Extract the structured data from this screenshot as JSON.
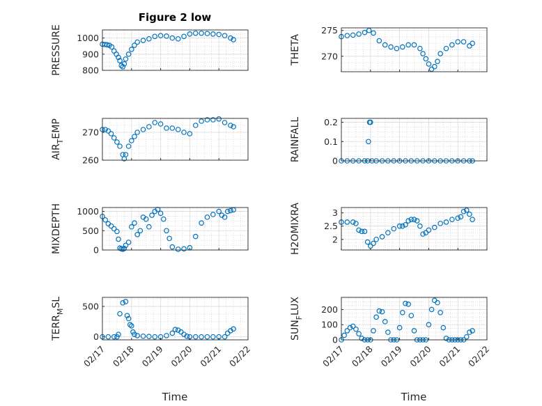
{
  "chart_data": [
    {
      "type": "scatter",
      "title": "Figure 2 low",
      "ylabel": "PRESSURE",
      "ylim": [
        800,
        1050
      ],
      "yticks": [
        800,
        900,
        1000
      ],
      "xlim": [
        0,
        5
      ],
      "grid": true,
      "marker_color": "#0072BD",
      "x": [
        0.0,
        0.08,
        0.16,
        0.24,
        0.32,
        0.4,
        0.48,
        0.55,
        0.6,
        0.65,
        0.7,
        0.75,
        0.8,
        0.9,
        1.0,
        1.1,
        1.2,
        1.4,
        1.6,
        1.8,
        2.0,
        2.2,
        2.4,
        2.6,
        2.8,
        3.0,
        3.2,
        3.4,
        3.6,
        3.8,
        4.0,
        4.2,
        4.4,
        4.5
      ],
      "values": [
        962,
        960,
        958,
        955,
        945,
        920,
        900,
        880,
        860,
        830,
        822,
        840,
        870,
        900,
        930,
        955,
        975,
        985,
        995,
        1010,
        1015,
        1012,
        1000,
        995,
        1010,
        1025,
        1030,
        1030,
        1028,
        1025,
        1022,
        1015,
        1000,
        990
      ]
    },
    {
      "type": "scatter",
      "ylabel": "THETA",
      "ylim": [
        267,
        275.5
      ],
      "yticks": [
        270,
        275
      ],
      "xlim": [
        0,
        5
      ],
      "grid": true,
      "marker_color": "#0072BD",
      "x": [
        0.0,
        0.2,
        0.4,
        0.6,
        0.8,
        0.95,
        1.1,
        1.3,
        1.5,
        1.7,
        1.9,
        2.1,
        2.3,
        2.5,
        2.7,
        2.8,
        2.9,
        3.0,
        3.1,
        3.2,
        3.3,
        3.4,
        3.6,
        3.8,
        4.0,
        4.2,
        4.4,
        4.5
      ],
      "values": [
        273.8,
        274.0,
        274.1,
        274.3,
        274.6,
        275.0,
        274.5,
        273.0,
        272.2,
        271.8,
        271.5,
        271.8,
        272.2,
        272.2,
        271.5,
        270.5,
        269.5,
        268.5,
        267.5,
        268.0,
        269.0,
        270.5,
        271.5,
        272.2,
        272.8,
        272.8,
        272.0,
        272.5
      ]
    },
    {
      "type": "scatter",
      "ylabel": "AIR_TEMP",
      "ylim": [
        260,
        275
      ],
      "yticks": [
        260,
        270
      ],
      "xlim": [
        0,
        5
      ],
      "grid": true,
      "marker_color": "#0072BD",
      "x": [
        0.0,
        0.1,
        0.2,
        0.3,
        0.4,
        0.5,
        0.6,
        0.7,
        0.75,
        0.8,
        0.9,
        1.0,
        1.1,
        1.2,
        1.4,
        1.6,
        1.8,
        2.0,
        2.2,
        2.4,
        2.6,
        2.8,
        3.0,
        3.2,
        3.4,
        3.6,
        3.8,
        4.0,
        4.2,
        4.4,
        4.5
      ],
      "values": [
        271,
        271,
        270.5,
        269.5,
        268,
        266.5,
        265,
        262,
        260.5,
        262,
        265,
        267,
        268.5,
        270,
        271,
        272,
        273.5,
        273,
        271.5,
        271.5,
        271,
        270,
        269.5,
        272.5,
        274,
        274.5,
        274.5,
        274.8,
        273.5,
        272.5,
        272
      ]
    },
    {
      "type": "scatter",
      "ylabel": "RAINFALL",
      "ylim": [
        0,
        0.22
      ],
      "yticks": [
        0,
        0.1,
        0.2
      ],
      "xlim": [
        0,
        5
      ],
      "grid": true,
      "marker_color": "#0072BD",
      "x": [
        0.0,
        0.2,
        0.4,
        0.6,
        0.8,
        0.9,
        0.93,
        0.97,
        1.0,
        1.05,
        1.2,
        1.4,
        1.6,
        1.8,
        2.0,
        2.2,
        2.4,
        2.6,
        2.8,
        3.0,
        3.2,
        3.4,
        3.6,
        3.8,
        4.0,
        4.2,
        4.4,
        4.5
      ],
      "values": [
        0,
        0,
        0,
        0,
        0,
        0,
        0.1,
        0.2,
        0.2,
        0,
        0,
        0,
        0,
        0,
        0,
        0,
        0,
        0,
        0,
        0,
        0,
        0,
        0,
        0,
        0,
        0,
        0,
        0
      ]
    },
    {
      "type": "scatter",
      "ylabel": "MIXDEPTH",
      "ylim": [
        0,
        1100
      ],
      "yticks": [
        0,
        500,
        1000
      ],
      "xlim": [
        0,
        5
      ],
      "grid": true,
      "marker_color": "#0072BD",
      "x": [
        0.0,
        0.1,
        0.2,
        0.3,
        0.4,
        0.5,
        0.55,
        0.6,
        0.65,
        0.7,
        0.75,
        0.8,
        0.9,
        1.0,
        1.1,
        1.2,
        1.3,
        1.4,
        1.5,
        1.6,
        1.7,
        1.8,
        1.9,
        2.0,
        2.1,
        2.2,
        2.3,
        2.4,
        2.6,
        2.8,
        3.0,
        3.2,
        3.4,
        3.6,
        3.8,
        4.0,
        4.1,
        4.2,
        4.3,
        4.4,
        4.5
      ],
      "values": [
        870,
        780,
        680,
        620,
        550,
        480,
        280,
        50,
        30,
        20,
        40,
        120,
        200,
        600,
        700,
        400,
        500,
        850,
        800,
        600,
        900,
        1000,
        1050,
        950,
        800,
        500,
        300,
        80,
        20,
        30,
        60,
        350,
        700,
        850,
        920,
        1000,
        900,
        850,
        1000,
        1020,
        1040
      ]
    },
    {
      "type": "scatter",
      "ylabel": "H2OMIXRA",
      "ylim": [
        1.6,
        3.2
      ],
      "yticks": [
        2,
        2.5,
        3
      ],
      "xlim": [
        0,
        5
      ],
      "grid": true,
      "marker_color": "#0072BD",
      "x": [
        0.0,
        0.2,
        0.4,
        0.5,
        0.6,
        0.7,
        0.8,
        0.9,
        1.0,
        1.1,
        1.2,
        1.4,
        1.6,
        1.8,
        2.0,
        2.1,
        2.2,
        2.3,
        2.4,
        2.5,
        2.6,
        2.7,
        2.8,
        2.9,
        3.0,
        3.2,
        3.4,
        3.6,
        3.8,
        4.0,
        4.1,
        4.2,
        4.3,
        4.4,
        4.5
      ],
      "values": [
        2.65,
        2.65,
        2.65,
        2.6,
        2.35,
        2.3,
        2.3,
        1.9,
        1.75,
        1.85,
        2.0,
        2.1,
        2.25,
        2.4,
        2.5,
        2.5,
        2.55,
        2.7,
        2.75,
        2.75,
        2.7,
        2.5,
        2.2,
        2.25,
        2.35,
        2.45,
        2.6,
        2.65,
        2.75,
        2.8,
        2.85,
        3.05,
        3.1,
        2.95,
        2.75
      ]
    },
    {
      "type": "scatter",
      "ylabel": "TERR_MSL",
      "ylim": [
        -50,
        650
      ],
      "yticks": [
        0,
        500
      ],
      "xlim": [
        0,
        5
      ],
      "grid": true,
      "marker_color": "#0072BD",
      "x": [
        0.0,
        0.2,
        0.4,
        0.5,
        0.55,
        0.6,
        0.7,
        0.8,
        0.85,
        0.9,
        0.95,
        1.0,
        1.05,
        1.1,
        1.2,
        1.4,
        1.6,
        1.8,
        2.0,
        2.2,
        2.4,
        2.5,
        2.6,
        2.7,
        2.8,
        2.9,
        3.0,
        3.2,
        3.4,
        3.6,
        3.8,
        4.0,
        4.2,
        4.3,
        4.4,
        4.5
      ],
      "values": [
        0,
        0,
        0,
        0,
        40,
        380,
        560,
        580,
        350,
        300,
        200,
        180,
        80,
        40,
        20,
        10,
        5,
        0,
        0,
        20,
        60,
        120,
        110,
        80,
        40,
        10,
        0,
        0,
        0,
        0,
        0,
        0,
        0,
        60,
        100,
        130
      ]
    },
    {
      "type": "scatter",
      "ylabel": "SUN_FLUX",
      "ylim": [
        0,
        280
      ],
      "yticks": [
        0,
        100,
        200
      ],
      "xlim": [
        0,
        5
      ],
      "grid": true,
      "marker_color": "#0072BD",
      "x": [
        0.0,
        0.1,
        0.2,
        0.3,
        0.4,
        0.5,
        0.6,
        0.7,
        0.8,
        0.9,
        1.0,
        1.1,
        1.2,
        1.3,
        1.4,
        1.5,
        1.6,
        1.7,
        1.8,
        1.9,
        2.0,
        2.1,
        2.2,
        2.3,
        2.4,
        2.5,
        2.6,
        2.7,
        2.8,
        2.9,
        3.0,
        3.1,
        3.2,
        3.3,
        3.4,
        3.5,
        3.6,
        3.7,
        3.8,
        3.9,
        4.0,
        4.1,
        4.2,
        4.3,
        4.4,
        4.5
      ],
      "values": [
        0,
        30,
        60,
        80,
        90,
        70,
        40,
        10,
        0,
        0,
        0,
        60,
        150,
        190,
        185,
        120,
        50,
        0,
        0,
        0,
        80,
        180,
        240,
        235,
        160,
        60,
        0,
        0,
        0,
        0,
        100,
        200,
        260,
        245,
        180,
        80,
        10,
        0,
        0,
        0,
        0,
        0,
        0,
        20,
        50,
        60
      ]
    }
  ],
  "xaxis": {
    "label": "Time",
    "ticks": [
      "02/17",
      "02/18",
      "02/19",
      "02/20",
      "02/21",
      "02/22"
    ]
  }
}
